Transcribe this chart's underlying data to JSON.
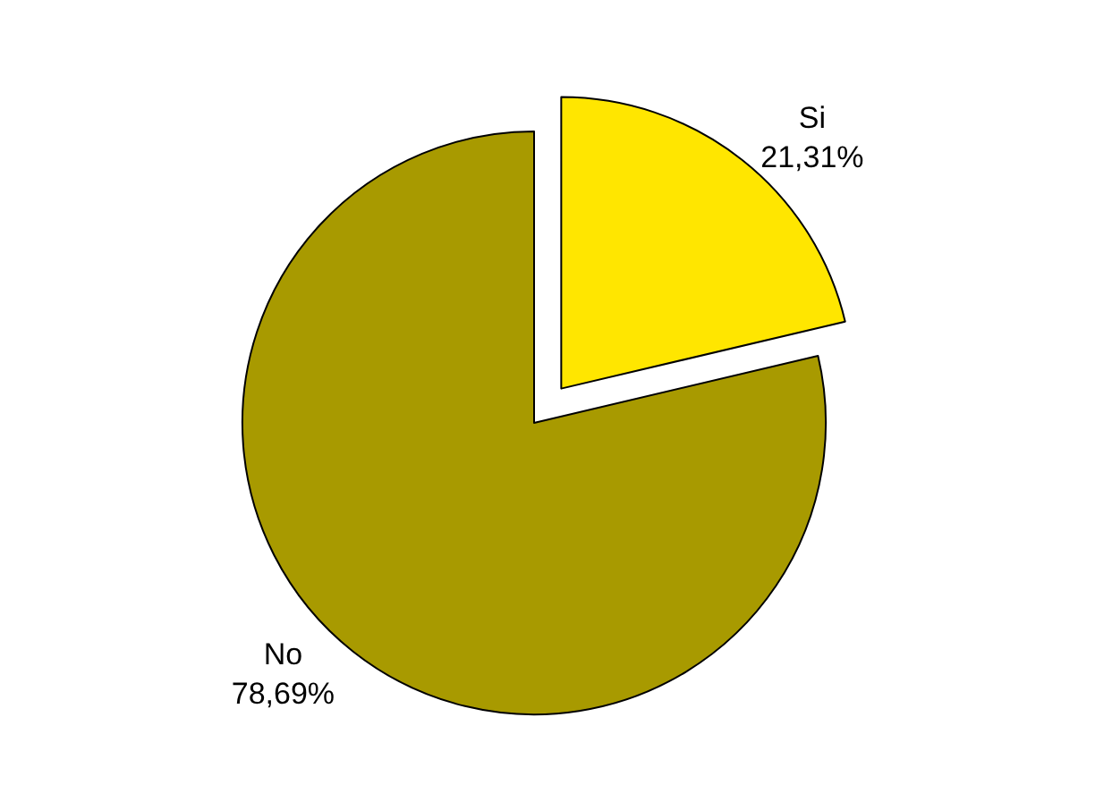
{
  "chart_data": {
    "type": "pie",
    "categories": [
      "Si",
      "No"
    ],
    "values": [
      21.31,
      78.69
    ],
    "value_labels": [
      "21,31%",
      "78,69%"
    ],
    "colors": [
      "#ffe600",
      "#a89a00"
    ]
  }
}
